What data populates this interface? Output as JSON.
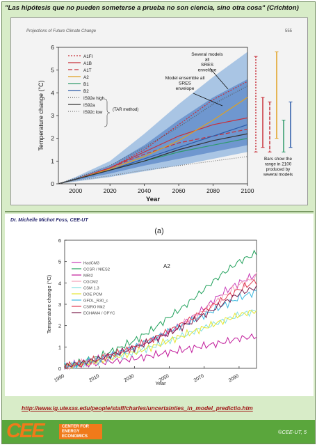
{
  "quote": "\"Las hipótesis que no pueden someterse a prueba no son ciencia, sino otra cosa\" (Crichton)",
  "author": "Dr. Michelle Michot Foss, CEE-UT",
  "url": "http://www.ig.utexas.edu/people/staff/charles/uncertainties_in_model_predictio.htm",
  "footer": {
    "logo_big": "CEE",
    "logo_lines": [
      "CENTER FOR",
      "ENERGY",
      "ECONOMICS"
    ],
    "copyright": "©CEE-UT, 5"
  },
  "colors": {
    "slide_bg": "#d8ecc8",
    "footer_green": "#5aa63c",
    "logo_orange": "#f07a1a",
    "url_red": "#a01818"
  },
  "chart_data": [
    {
      "type": "area",
      "title": "Projections of Future Climate Change",
      "page_number": "555",
      "xlabel": "Year",
      "ylabel": "Temperature change (°C)",
      "xlim": [
        1990,
        2100
      ],
      "ylim": [
        0,
        6
      ],
      "x_ticks": [
        2000,
        2020,
        2040,
        2060,
        2080,
        2100
      ],
      "y_ticks": [
        0,
        1,
        2,
        3,
        4,
        5,
        6
      ],
      "annotations": {
        "outer_envelope": "Several models all SRES envelope",
        "inner_envelope": "Model ensemble all SRES envelope",
        "bars_note": "Bars show the range in 2100 produced by several models",
        "tar_method": "(TAR method)"
      },
      "envelopes": [
        {
          "name": "outer",
          "x": [
            1990,
            2000,
            2020,
            2040,
            2060,
            2080,
            2100
          ],
          "upper": [
            0,
            0.3,
            1.0,
            2.2,
            3.5,
            4.7,
            5.8
          ],
          "lower": [
            0,
            0.1,
            0.3,
            0.55,
            0.8,
            1.1,
            1.4
          ]
        },
        {
          "name": "inner",
          "x": [
            1990,
            2000,
            2020,
            2040,
            2060,
            2080,
            2100
          ],
          "upper": [
            0,
            0.25,
            0.8,
            1.7,
            2.8,
            3.8,
            4.6
          ],
          "lower": [
            0,
            0.15,
            0.45,
            0.8,
            1.1,
            1.4,
            1.7
          ]
        }
      ],
      "x": [
        1990,
        2000,
        2020,
        2040,
        2060,
        2080,
        2100
      ],
      "series": [
        {
          "name": "A1FI",
          "values": [
            0,
            0.2,
            0.7,
            1.5,
            2.6,
            3.7,
            4.5
          ]
        },
        {
          "name": "A1B",
          "values": [
            0,
            0.2,
            0.7,
            1.4,
            2.1,
            2.6,
            2.9
          ]
        },
        {
          "name": "A1T",
          "values": [
            0,
            0.2,
            0.7,
            1.3,
            1.8,
            2.1,
            2.4
          ]
        },
        {
          "name": "A2",
          "values": [
            0,
            0.2,
            0.65,
            1.2,
            1.9,
            2.8,
            3.8
          ]
        },
        {
          "name": "B1",
          "values": [
            0,
            0.2,
            0.6,
            1.0,
            1.4,
            1.7,
            2.0
          ]
        },
        {
          "name": "B2",
          "values": [
            0,
            0.2,
            0.6,
            1.1,
            1.6,
            2.1,
            2.6
          ]
        },
        {
          "name": "IS92e high",
          "values": [
            0,
            0.25,
            0.8,
            1.6,
            2.5,
            3.5,
            4.3
          ]
        },
        {
          "name": "IS92a",
          "values": [
            0,
            0.2,
            0.6,
            1.0,
            1.5,
            1.9,
            2.2
          ]
        },
        {
          "name": "IS92c low",
          "values": [
            0,
            0.15,
            0.35,
            0.6,
            0.8,
            1.0,
            1.2
          ]
        }
      ],
      "range_bars_2100": [
        {
          "name": "A1FI",
          "low": 1.4,
          "high": 5.6
        },
        {
          "name": "A1B",
          "low": 1.6,
          "high": 3.8
        },
        {
          "name": "A1T",
          "low": 1.4,
          "high": 3.6
        },
        {
          "name": "A2",
          "low": 2.0,
          "high": 5.8
        },
        {
          "name": "B1",
          "low": 1.4,
          "high": 2.8
        },
        {
          "name": "B2",
          "low": 1.6,
          "high": 3.6
        }
      ]
    },
    {
      "type": "line",
      "title": "(a)",
      "inner_label": "A2",
      "xlabel": "Year",
      "ylabel": "Temperature change (°C)",
      "xlim": [
        1990,
        2100
      ],
      "ylim": [
        0,
        6
      ],
      "x_ticks": [
        1990,
        2010,
        2030,
        2050,
        2070,
        2090
      ],
      "y_ticks": [
        0,
        1,
        2,
        3,
        4,
        5,
        6
      ],
      "x": [
        1990,
        2000,
        2010,
        2020,
        2030,
        2040,
        2050,
        2060,
        2070,
        2080,
        2090,
        2100
      ],
      "series": [
        {
          "name": "HadCM3",
          "values": [
            0.1,
            0.25,
            0.45,
            0.7,
            1.0,
            1.3,
            1.7,
            2.2,
            2.8,
            3.5,
            4.0,
            4.4
          ]
        },
        {
          "name": "CCSR / NIES2",
          "values": [
            0.1,
            0.3,
            0.55,
            0.9,
            1.3,
            1.8,
            2.4,
            3.0,
            3.7,
            4.4,
            5.0,
            5.4
          ]
        },
        {
          "name": "MRI2",
          "values": [
            0.1,
            0.15,
            0.25,
            0.35,
            0.45,
            0.6,
            0.75,
            0.9,
            1.05,
            1.2,
            1.4,
            1.5
          ]
        },
        {
          "name": "CGCM2",
          "values": [
            0.1,
            0.25,
            0.45,
            0.7,
            1.0,
            1.35,
            1.75,
            2.2,
            2.7,
            3.3,
            3.9,
            4.3
          ]
        },
        {
          "name": "CSM 1.3",
          "values": [
            0.1,
            0.2,
            0.35,
            0.55,
            0.75,
            1.0,
            1.3,
            1.6,
            1.9,
            2.2,
            2.5,
            2.7
          ]
        },
        {
          "name": "DOE PCM",
          "values": [
            0.1,
            0.2,
            0.35,
            0.55,
            0.75,
            1.0,
            1.3,
            1.6,
            1.9,
            2.2,
            2.5,
            2.7
          ]
        },
        {
          "name": "GFDL_R30_c",
          "values": [
            0.1,
            0.25,
            0.45,
            0.7,
            1.0,
            1.35,
            1.75,
            2.1,
            2.5,
            2.9,
            3.3,
            3.6
          ]
        },
        {
          "name": "CSIRO Mk2",
          "values": [
            0.1,
            0.25,
            0.45,
            0.7,
            1.0,
            1.35,
            1.75,
            2.2,
            2.7,
            3.2,
            3.7,
            4.1
          ]
        },
        {
          "name": "ECHAM4 / OPYC",
          "values": [
            0.1,
            0.25,
            0.45,
            0.7,
            0.95,
            1.3,
            1.65,
            2.05,
            2.5,
            3.0,
            3.5,
            3.8
          ]
        }
      ]
    }
  ]
}
